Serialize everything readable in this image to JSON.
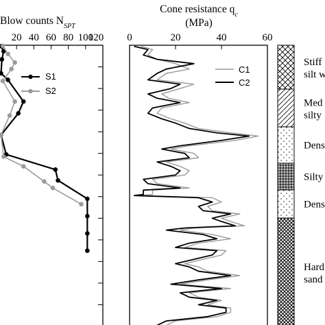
{
  "colors": {
    "s1": "#000000",
    "s2": "#9a9a9a",
    "c1": "#9a9a9a",
    "c2": "#000000",
    "axis": "#000000"
  },
  "chart_data": [
    {
      "type": "line",
      "title": "Blow counts N",
      "title_sub": "SPT",
      "xlim": [
        0,
        120
      ],
      "x_ticks": [
        "20",
        "40",
        "60",
        "80",
        "100",
        "120"
      ],
      "legend_position": "top-right",
      "series": [
        {
          "name": "S1",
          "points": [
            [
              2,
              0.08
            ],
            [
              5,
              0.55
            ],
            [
              3,
              1.3
            ],
            [
              2,
              2.6
            ],
            [
              10,
              3.2
            ],
            [
              28,
              5.2
            ],
            [
              22,
              6.3
            ],
            [
              2,
              8.3
            ],
            [
              8,
              10.1
            ],
            [
              65,
              11.5
            ],
            [
              68,
              12.5
            ],
            [
              102,
              14.2
            ],
            [
              102,
              15.8
            ],
            [
              102,
              17.4
            ],
            [
              102,
              19.0
            ]
          ]
        },
        {
          "name": "S2",
          "points": [
            [
              4,
              0.05
            ],
            [
              10,
              0.8
            ],
            [
              18,
              1.6
            ],
            [
              14,
              2.2
            ],
            [
              4,
              3.3
            ],
            [
              18,
              5.2
            ],
            [
              12,
              6.5
            ],
            [
              2,
              8.3
            ],
            [
              5,
              10.3
            ],
            [
              28,
              11.2
            ],
            [
              52,
              12.6
            ],
            [
              62,
              13.2
            ],
            [
              95,
              14.7
            ]
          ]
        }
      ]
    },
    {
      "type": "line",
      "title": "Cone resistance q",
      "title_sub": "c",
      "unit": "(MPa)",
      "xlim": [
        0,
        60
      ],
      "x_ticks": [
        "0",
        "20",
        "40",
        "60"
      ],
      "legend_position": "top-right",
      "series": [
        {
          "name": "C1",
          "points": [
            [
              5,
              0.1
            ],
            [
              10,
              0.4
            ],
            [
              8,
              0.9
            ],
            [
              12,
              1.3
            ],
            [
              20,
              1.7
            ],
            [
              26,
              2.2
            ],
            [
              16,
              2.6
            ],
            [
              12,
              3.2
            ],
            [
              28,
              3.6
            ],
            [
              22,
              4.0
            ],
            [
              14,
              4.5
            ],
            [
              17,
              4.9
            ],
            [
              26,
              5.3
            ],
            [
              14,
              5.8
            ],
            [
              12,
              6.3
            ],
            [
              18,
              6.8
            ],
            [
              24,
              7.2
            ],
            [
              30,
              7.7
            ],
            [
              44,
              8.1
            ],
            [
              56,
              8.4
            ],
            [
              46,
              8.8
            ],
            [
              26,
              9.3
            ],
            [
              18,
              9.6
            ],
            [
              28,
              10.0
            ],
            [
              30,
              10.4
            ],
            [
              16,
              10.8
            ],
            [
              22,
              11.2
            ],
            [
              26,
              11.6
            ],
            [
              24,
              12.0
            ],
            [
              10,
              12.4
            ],
            [
              12,
              12.8
            ],
            [
              26,
              13.2
            ],
            [
              10,
              13.4
            ],
            [
              10,
              13.8
            ],
            [
              4,
              13.9
            ],
            [
              36,
              14.1
            ],
            [
              40,
              14.5
            ],
            [
              34,
              14.9
            ],
            [
              36,
              15.3
            ],
            [
              48,
              15.6
            ],
            [
              40,
              16.0
            ],
            [
              44,
              16.3
            ],
            [
              50,
              16.7
            ],
            [
              28,
              16.9
            ],
            [
              22,
              17.1
            ],
            [
              36,
              17.5
            ],
            [
              44,
              17.9
            ],
            [
              30,
              18.3
            ],
            [
              24,
              18.7
            ],
            [
              42,
              19.0
            ],
            [
              40,
              19.4
            ],
            [
              32,
              19.8
            ],
            [
              24,
              20.2
            ],
            [
              30,
              20.5
            ],
            [
              34,
              20.9
            ],
            [
              48,
              21.3
            ],
            [
              34,
              21.7
            ],
            [
              22,
              22.1
            ],
            [
              44,
              22.5
            ],
            [
              26,
              22.9
            ],
            [
              30,
              23.3
            ],
            [
              40,
              23.6
            ],
            [
              34,
              24.0
            ],
            [
              44,
              24.3
            ],
            [
              44,
              24.7
            ],
            [
              38,
              25.1
            ],
            [
              20,
              25.5
            ],
            [
              16,
              25.9
            ]
          ]
        },
        {
          "name": "C2",
          "points": [
            [
              2,
              0.1
            ],
            [
              8,
              0.4
            ],
            [
              6,
              0.9
            ],
            [
              12,
              1.3
            ],
            [
              28,
              1.7
            ],
            [
              16,
              2.2
            ],
            [
              12,
              2.6
            ],
            [
              8,
              3.2
            ],
            [
              22,
              3.6
            ],
            [
              18,
              4.0
            ],
            [
              8,
              4.5
            ],
            [
              12,
              4.9
            ],
            [
              22,
              5.3
            ],
            [
              10,
              5.8
            ],
            [
              8,
              6.3
            ],
            [
              14,
              6.8
            ],
            [
              20,
              7.2
            ],
            [
              26,
              7.7
            ],
            [
              38,
              8.1
            ],
            [
              52,
              8.4
            ],
            [
              40,
              8.8
            ],
            [
              22,
              9.3
            ],
            [
              14,
              9.6
            ],
            [
              24,
              10.0
            ],
            [
              26,
              10.4
            ],
            [
              12,
              10.8
            ],
            [
              18,
              11.2
            ],
            [
              22,
              11.6
            ],
            [
              20,
              12.0
            ],
            [
              6,
              12.4
            ],
            [
              8,
              12.8
            ],
            [
              22,
              13.2
            ],
            [
              6,
              13.4
            ],
            [
              6,
              13.8
            ],
            [
              2,
              13.9
            ],
            [
              30,
              14.1
            ],
            [
              36,
              14.5
            ],
            [
              30,
              14.9
            ],
            [
              32,
              15.3
            ],
            [
              44,
              15.6
            ],
            [
              36,
              16.0
            ],
            [
              40,
              16.3
            ],
            [
              46,
              16.7
            ],
            [
              24,
              16.9
            ],
            [
              16,
              17.1
            ],
            [
              32,
              17.5
            ],
            [
              38,
              17.9
            ],
            [
              26,
              18.3
            ],
            [
              20,
              18.7
            ],
            [
              38,
              19.0
            ],
            [
              36,
              19.4
            ],
            [
              28,
              19.8
            ],
            [
              20,
              20.2
            ],
            [
              26,
              20.5
            ],
            [
              30,
              20.9
            ],
            [
              44,
              21.3
            ],
            [
              30,
              21.7
            ],
            [
              18,
              22.1
            ],
            [
              40,
              22.5
            ],
            [
              22,
              22.9
            ],
            [
              26,
              23.3
            ],
            [
              38,
              23.6
            ],
            [
              30,
              24.0
            ],
            [
              42,
              24.3
            ],
            [
              42,
              24.7
            ],
            [
              34,
              25.1
            ],
            [
              16,
              25.5
            ],
            [
              12,
              25.9
            ]
          ]
        }
      ]
    },
    {
      "type": "table",
      "layers": [
        {
          "label_line1": "Stiff",
          "label_line2": "silt w",
          "pattern": "crosshatch"
        },
        {
          "label_line1": "Med",
          "label_line2": "silty",
          "pattern": "diagonal"
        },
        {
          "label_line1": "Dens",
          "label_line2": "",
          "pattern": "dots"
        },
        {
          "label_line1": "Silty",
          "label_line2": "",
          "pattern": "dense-dots"
        },
        {
          "label_line1": "Dens",
          "label_line2": "",
          "pattern": "dots"
        },
        {
          "label_line1": "Hard",
          "label_line2": "sand",
          "pattern": "dark-crosshatch"
        }
      ]
    }
  ]
}
